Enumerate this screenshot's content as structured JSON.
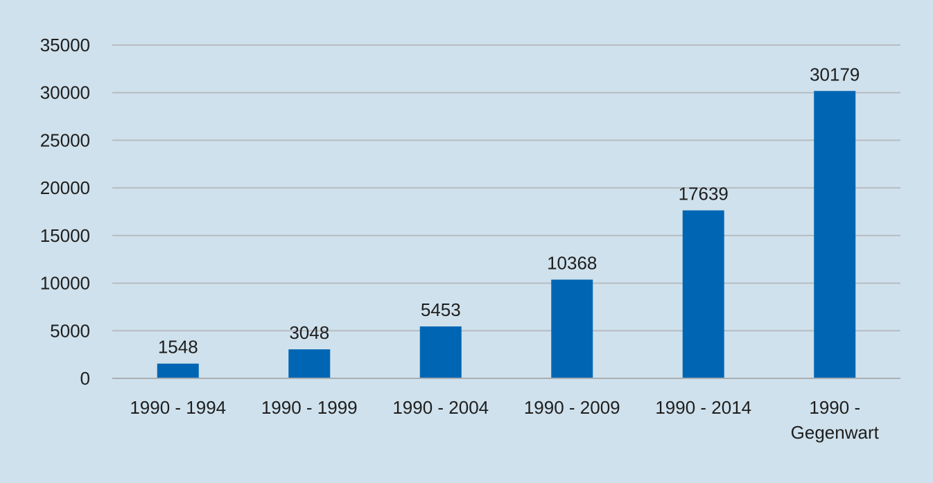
{
  "colors": {
    "background": "#cfe1ec",
    "bar": "#0066b3",
    "gridline": "#b6bcc2",
    "axis": "#a9aeb3",
    "text": "#1e1e1e"
  },
  "chart_data": {
    "type": "bar",
    "title": "",
    "xlabel": "",
    "ylabel": "",
    "categories": [
      "1990 - 1994",
      "1990 - 1999",
      "1990 - 2004",
      "1990 - 2009",
      "1990 - 2014",
      "1990 - Gegenwart"
    ],
    "values": [
      1548,
      3048,
      5453,
      10368,
      17639,
      30179
    ],
    "ylim": [
      0,
      35000
    ],
    "yticks": [
      0,
      5000,
      10000,
      15000,
      20000,
      25000,
      30000,
      35000
    ],
    "grid": true,
    "legend": "none",
    "data_labels": true
  }
}
